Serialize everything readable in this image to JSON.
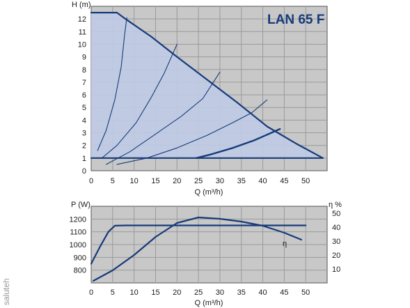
{
  "watermark": "saluteh",
  "colors": {
    "plot_bg": "#c8c8c8",
    "grid": "#9a9a9a",
    "curve": "#163a7a",
    "fill": "#bfcbe6"
  },
  "chart_data": [
    {
      "type": "line",
      "title": "LAN 65 F",
      "xlabel": "Q (m³/h)",
      "ylabel": "H (m)",
      "xlim": [
        0,
        55
      ],
      "ylim": [
        0,
        13
      ],
      "x_ticks": [
        "0",
        "5",
        "10",
        "15",
        "20",
        "25",
        "30",
        "35",
        "40",
        "45",
        "50"
      ],
      "y_ticks": [
        "0",
        "1",
        "2",
        "3",
        "4",
        "5",
        "6",
        "7",
        "8",
        "9",
        "10",
        "11",
        "12"
      ],
      "grid": true,
      "series": [
        {
          "role": "max-speed-curve",
          "points": [
            [
              0,
              12.5
            ],
            [
              6,
              12.5
            ],
            [
              8,
              12.0
            ],
            [
              14,
              10.6
            ],
            [
              20,
              9.0
            ],
            [
              27,
              7.2
            ],
            [
              34,
              5.4
            ],
            [
              41,
              3.5
            ],
            [
              48,
              2.1
            ],
            [
              54,
              1.0
            ]
          ]
        },
        {
          "role": "min-head-line",
          "points": [
            [
              0,
              1.0
            ],
            [
              54,
              1.0
            ]
          ]
        },
        {
          "role": "operating-limit",
          "points": [
            [
              24.5,
              1.0
            ],
            [
              28,
              1.3
            ],
            [
              33,
              1.8
            ],
            [
              38,
              2.4
            ],
            [
              44,
              3.3
            ]
          ]
        },
        {
          "role": "system-curve",
          "points": [
            [
              1.5,
              1.6
            ],
            [
              3.5,
              3.2
            ],
            [
              5.5,
              5.6
            ],
            [
              7,
              8.2
            ],
            [
              7.8,
              10.8
            ],
            [
              8.3,
              12.1
            ]
          ]
        },
        {
          "role": "system-curve",
          "points": [
            [
              2.5,
              1.0
            ],
            [
              6,
              2.0
            ],
            [
              10.5,
              3.8
            ],
            [
              14,
              5.8
            ],
            [
              17,
              7.7
            ],
            [
              20,
              10.0
            ]
          ]
        },
        {
          "role": "system-curve",
          "points": [
            [
              3.5,
              0.5
            ],
            [
              9,
              1.5
            ],
            [
              15,
              2.9
            ],
            [
              21,
              4.3
            ],
            [
              26,
              5.7
            ],
            [
              30,
              7.8
            ]
          ]
        },
        {
          "role": "system-curve",
          "points": [
            [
              6,
              0.5
            ],
            [
              13,
              1.0
            ],
            [
              20,
              1.8
            ],
            [
              27,
              2.8
            ],
            [
              33,
              3.8
            ],
            [
              37.5,
              4.6
            ],
            [
              41,
              5.6
            ]
          ]
        }
      ]
    },
    {
      "type": "line",
      "xlabel": "Q (m³/h)",
      "ylabel": "P (W)",
      "y2label": "η %",
      "xlim": [
        0,
        55
      ],
      "ylim": [
        700,
        1300
      ],
      "y2lim": [
        0,
        55
      ],
      "x_ticks": [
        "0",
        "5",
        "10",
        "15",
        "20",
        "25",
        "30",
        "35",
        "40",
        "45",
        "50"
      ],
      "y_ticks": [
        "800",
        "900",
        "1000",
        "1100",
        "1200"
      ],
      "y2_ticks": [
        "10",
        "20",
        "30",
        "40",
        "50"
      ],
      "grid": true,
      "series": [
        {
          "role": "power",
          "points": [
            [
              0,
              850
            ],
            [
              2,
              980
            ],
            [
              4,
              1100
            ],
            [
              5.5,
              1148
            ],
            [
              8,
              1150
            ],
            [
              30,
              1150
            ],
            [
              50,
              1150
            ]
          ]
        },
        {
          "name": "η",
          "axis": "right",
          "points": [
            [
              0.5,
              1.5
            ],
            [
              5,
              9
            ],
            [
              10,
              20
            ],
            [
              15,
              33
            ],
            [
              20,
              43
            ],
            [
              25,
              47
            ],
            [
              30,
              46
            ],
            [
              35,
              44
            ],
            [
              40,
              41
            ],
            [
              45,
              36
            ],
            [
              49,
              31
            ]
          ]
        }
      ]
    }
  ]
}
